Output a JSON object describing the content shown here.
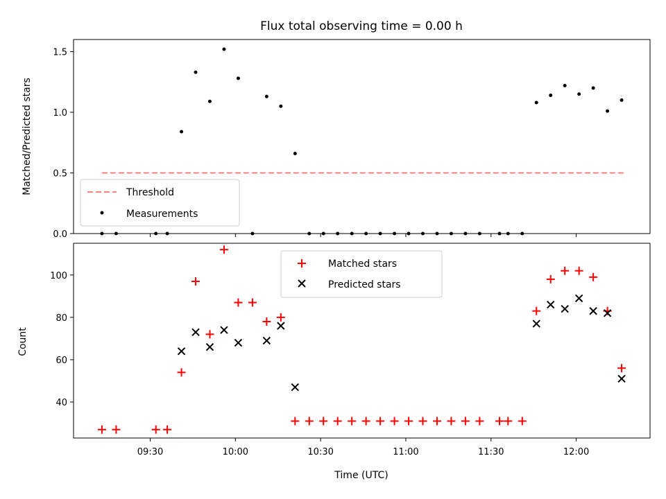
{
  "chart_data": [
    {
      "type": "scatter",
      "title": "Flux total observing time = 0.00 h",
      "xlabel": "",
      "ylabel": "Matched/Predicted stars",
      "ylim": [
        0,
        1.6
      ],
      "yticks": [
        "0.0",
        "0.5",
        "1.0",
        "1.5"
      ],
      "ytick_values": [
        0,
        0.5,
        1.0,
        1.5
      ],
      "legend_position": "lower-left",
      "grid": false,
      "threshold": {
        "name": "Threshold",
        "value": 0.5,
        "x_start": "09:13",
        "x_end": "12:17",
        "color": "#ff7f7f"
      },
      "series": [
        {
          "name": "Measurements",
          "color": "#000000",
          "marker": "dot",
          "points": [
            [
              "09:13",
              0
            ],
            [
              "09:18",
              0
            ],
            [
              "09:32",
              0
            ],
            [
              "09:36",
              0
            ],
            [
              "09:41",
              0.84
            ],
            [
              "09:46",
              1.33
            ],
            [
              "09:51",
              1.09
            ],
            [
              "09:56",
              1.52
            ],
            [
              "10:01",
              1.28
            ],
            [
              "10:06",
              0
            ],
            [
              "10:11",
              1.13
            ],
            [
              "10:16",
              1.05
            ],
            [
              "10:21",
              0.66
            ],
            [
              "10:26",
              0
            ],
            [
              "10:31",
              0
            ],
            [
              "10:36",
              0
            ],
            [
              "10:41",
              0
            ],
            [
              "10:46",
              0
            ],
            [
              "10:51",
              0
            ],
            [
              "10:56",
              0
            ],
            [
              "11:01",
              0
            ],
            [
              "11:06",
              0
            ],
            [
              "11:11",
              0
            ],
            [
              "11:16",
              0
            ],
            [
              "11:21",
              0
            ],
            [
              "11:26",
              0
            ],
            [
              "11:33",
              0
            ],
            [
              "11:36",
              0
            ],
            [
              "11:41",
              0
            ],
            [
              "11:46",
              1.08
            ],
            [
              "11:51",
              1.14
            ],
            [
              "11:56",
              1.22
            ],
            [
              "12:01",
              1.15
            ],
            [
              "12:06",
              1.2
            ],
            [
              "12:11",
              1.01
            ],
            [
              "12:16",
              1.1
            ]
          ]
        }
      ]
    },
    {
      "type": "scatter",
      "title": "",
      "xlabel": "Time (UTC)",
      "ylabel": "Count",
      "ylim": [
        23,
        115
      ],
      "yticks": [
        "40",
        "60",
        "80",
        "100"
      ],
      "ytick_values": [
        40,
        60,
        80,
        100
      ],
      "xticks": [
        "09:30",
        "10:00",
        "10:30",
        "11:00",
        "11:30",
        "12:00"
      ],
      "legend_position": "upper-center",
      "grid": false,
      "series": [
        {
          "name": "Matched stars",
          "color": "#ff0000",
          "marker": "plus",
          "points": [
            [
              "09:13",
              27
            ],
            [
              "09:18",
              27
            ],
            [
              "09:32",
              27
            ],
            [
              "09:36",
              27
            ],
            [
              "09:41",
              54
            ],
            [
              "09:46",
              97
            ],
            [
              "09:51",
              72
            ],
            [
              "09:56",
              112
            ],
            [
              "10:01",
              87
            ],
            [
              "10:06",
              87
            ],
            [
              "10:11",
              78
            ],
            [
              "10:16",
              80
            ],
            [
              "10:21",
              31
            ],
            [
              "10:26",
              31
            ],
            [
              "10:31",
              31
            ],
            [
              "10:36",
              31
            ],
            [
              "10:41",
              31
            ],
            [
              "10:46",
              31
            ],
            [
              "10:51",
              31
            ],
            [
              "10:56",
              31
            ],
            [
              "11:01",
              31
            ],
            [
              "11:06",
              31
            ],
            [
              "11:11",
              31
            ],
            [
              "11:16",
              31
            ],
            [
              "11:21",
              31
            ],
            [
              "11:26",
              31
            ],
            [
              "11:33",
              31
            ],
            [
              "11:36",
              31
            ],
            [
              "11:41",
              31
            ],
            [
              "11:46",
              83
            ],
            [
              "11:51",
              98
            ],
            [
              "11:56",
              102
            ],
            [
              "12:01",
              102
            ],
            [
              "12:06",
              99
            ],
            [
              "12:11",
              83
            ],
            [
              "12:16",
              56
            ]
          ]
        },
        {
          "name": "Predicted stars",
          "color": "#000000",
          "marker": "x",
          "points": [
            [
              "09:41",
              64
            ],
            [
              "09:46",
              73
            ],
            [
              "09:51",
              66
            ],
            [
              "09:56",
              74
            ],
            [
              "10:01",
              68
            ],
            [
              "10:11",
              69
            ],
            [
              "10:16",
              76
            ],
            [
              "10:21",
              47
            ],
            [
              "11:46",
              77
            ],
            [
              "11:51",
              86
            ],
            [
              "11:56",
              84
            ],
            [
              "12:01",
              89
            ],
            [
              "12:06",
              83
            ],
            [
              "12:11",
              82
            ],
            [
              "12:16",
              51
            ]
          ]
        }
      ]
    }
  ]
}
